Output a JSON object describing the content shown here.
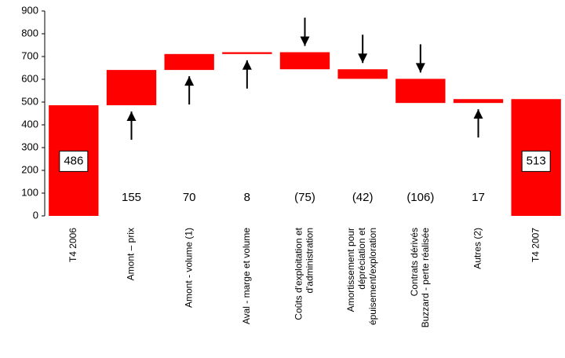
{
  "chart_data": {
    "type": "waterfall",
    "categories": [
      "T4 2006",
      "Amont – prix",
      "Amont - volume (1)",
      "Aval - marge et volume",
      "Coûts d'exploitation et\nd'administration",
      "Amortissement pour\ndépréciation et\népuisement/exploration",
      "Contrats dérivés\nBuzzard - perte réalisée",
      "Autres (2)",
      "T4 2007"
    ],
    "values": [
      486,
      155,
      70,
      8,
      -75,
      -42,
      -106,
      17,
      513
    ],
    "value_labels": [
      "486",
      "155",
      "70",
      "8",
      "(75)",
      "(42)",
      "(106)",
      "17",
      "513"
    ],
    "color": "#ff0000",
    "ylim": [
      0,
      900
    ],
    "yticks": [
      0,
      100,
      200,
      300,
      400,
      500,
      600,
      700,
      800,
      900
    ]
  }
}
